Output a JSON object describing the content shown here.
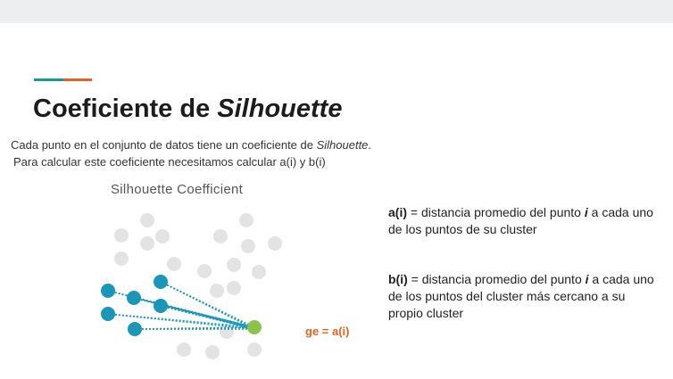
{
  "slide": {
    "title_main": "Coeficiente de ",
    "title_italic": "Silhouette",
    "intro_line1_text": "Cada punto en el conjunto de datos tiene un coeficiente de ",
    "intro_line1_italic": "Silhouette",
    "intro_line1_end": ".",
    "intro_line2": "Para calcular este coeficiente necesitamos calcular a(i) y b(i)"
  },
  "figure": {
    "title": "Silhouette Coefficient",
    "label": "ge = a(i)",
    "colors": {
      "cluster_point": "#1996b8",
      "target_point": "#8bc34a",
      "other_points": "#e3e3e3",
      "label": "#e8611f"
    }
  },
  "definitions": {
    "a_term": "a(i)",
    "a_text1": " = distancia promedio del punto ",
    "a_var": "i",
    "a_text2": " a cada uno de los puntos de su cluster",
    "b_term": "b(i)",
    "b_text1": " = distancia promedio del punto ",
    "b_var": "i",
    "b_text2": " a cada uno de los puntos del cluster más cercano a su propio cluster"
  }
}
